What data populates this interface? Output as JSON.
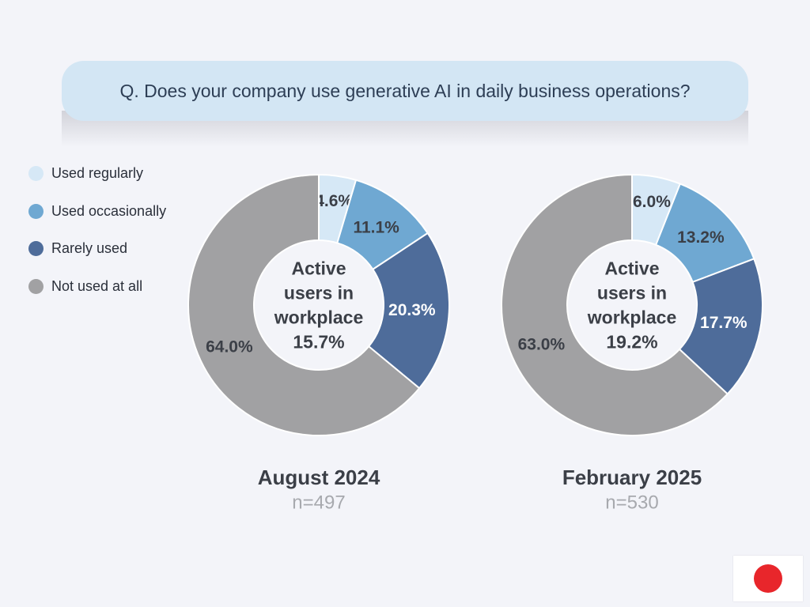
{
  "question": "Q. Does your company use generative AI in daily business operations?",
  "legend": [
    {
      "label": "Used regularly",
      "color": "#d6e8f6"
    },
    {
      "label": "Used occasionally",
      "color": "#6fa8d2"
    },
    {
      "label": "Rarely used",
      "color": "#4e6c9a"
    },
    {
      "label": "Not used at all",
      "color": "#a1a1a3"
    }
  ],
  "chart_data": [
    {
      "type": "pie",
      "title": "August 2024",
      "subtitle": "n=497",
      "center_lines": [
        "Active",
        "users in",
        "workplace",
        "15.7%"
      ],
      "categories": [
        "Used regularly",
        "Used occasionally",
        "Rarely used",
        "Not used at all"
      ],
      "values": [
        4.6,
        11.1,
        20.3,
        64.0
      ],
      "labels": [
        "4.6%",
        "11.1%",
        "20.3%",
        "64.0%"
      ]
    },
    {
      "type": "pie",
      "title": "February 2025",
      "subtitle": "n=530",
      "center_lines": [
        "Active",
        "users in",
        "workplace",
        "19.2%"
      ],
      "categories": [
        "Used regularly",
        "Used occasionally",
        "Rarely used",
        "Not used at all"
      ],
      "values": [
        6.0,
        13.2,
        17.7,
        63.0
      ],
      "labels": [
        "6.0%",
        "13.2%",
        "17.7%",
        "63.0%"
      ]
    }
  ],
  "flag_icon": "japan-flag-icon"
}
